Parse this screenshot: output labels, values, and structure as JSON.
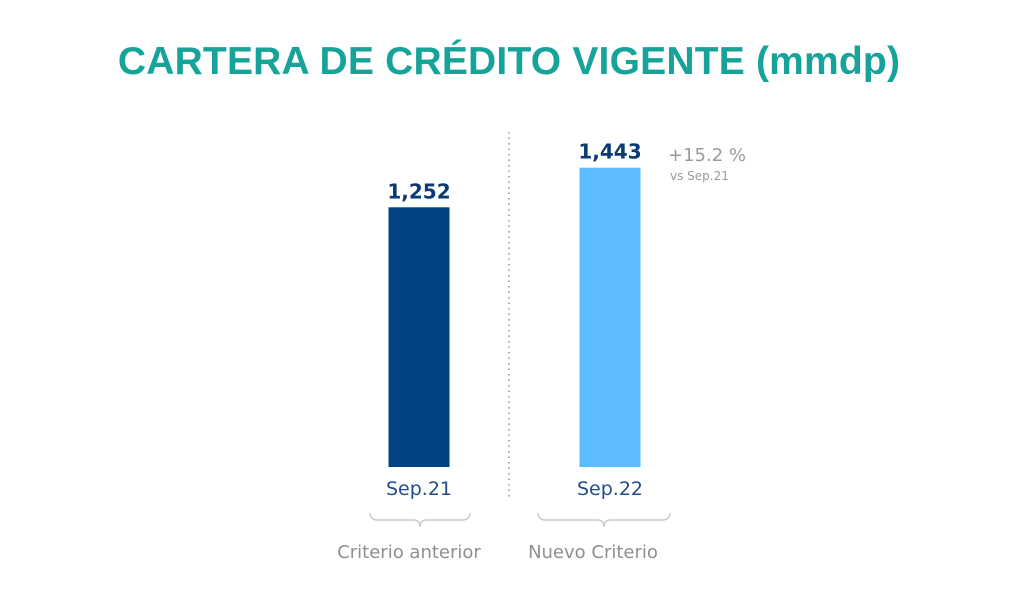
{
  "title": "CARTERA DE CRÉDITO VIGENTE (mmdp)",
  "colors": {
    "title": "#16a39a",
    "bar_previous": "#004282",
    "bar_new": "#5bbcff",
    "value_label": "#0a3a73",
    "category_label": "#1f4f8a",
    "muted_text": "#9a9a9a",
    "divider": "#7f9fc4",
    "bracket": "#c8c8c8"
  },
  "chart_data": {
    "type": "bar",
    "title": "CARTERA DE CRÉDITO VIGENTE (mmdp)",
    "categories": [
      "Sep.21",
      "Sep.22"
    ],
    "values": [
      1252,
      1443
    ],
    "value_labels": [
      "1,252",
      "1,443"
    ],
    "groups": [
      "Criterio anterior",
      "Nuevo Criterio"
    ],
    "ylim": [
      0,
      1480
    ],
    "grid": false,
    "legend": "none",
    "annotation": {
      "change": "+15.2 %",
      "basis": "vs Sep.21"
    }
  }
}
